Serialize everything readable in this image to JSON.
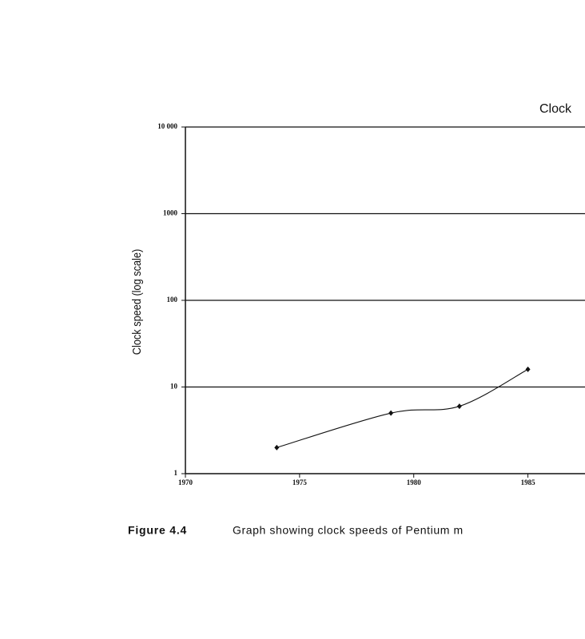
{
  "chart_data": {
    "type": "line",
    "title": "Clock",
    "y_label": "Clock speed (log scale)",
    "x": [
      1974,
      1979,
      1982,
      1985
    ],
    "series": [
      {
        "values": [
          2,
          5,
          6,
          16
        ],
        "color": "#111111"
      }
    ],
    "xlim": [
      1970,
      1987.5
    ],
    "xticks": [
      1970,
      1975,
      1980,
      1985
    ],
    "ylim": [
      1,
      10000
    ],
    "yticks": [
      1,
      10,
      100,
      1000,
      {
        "value": 10000,
        "label": "10 000"
      }
    ],
    "log_y": true,
    "grid": true
  },
  "caption": {
    "label": "Figure 4.4",
    "text": "Graph showing clock speeds of Pentium m"
  }
}
